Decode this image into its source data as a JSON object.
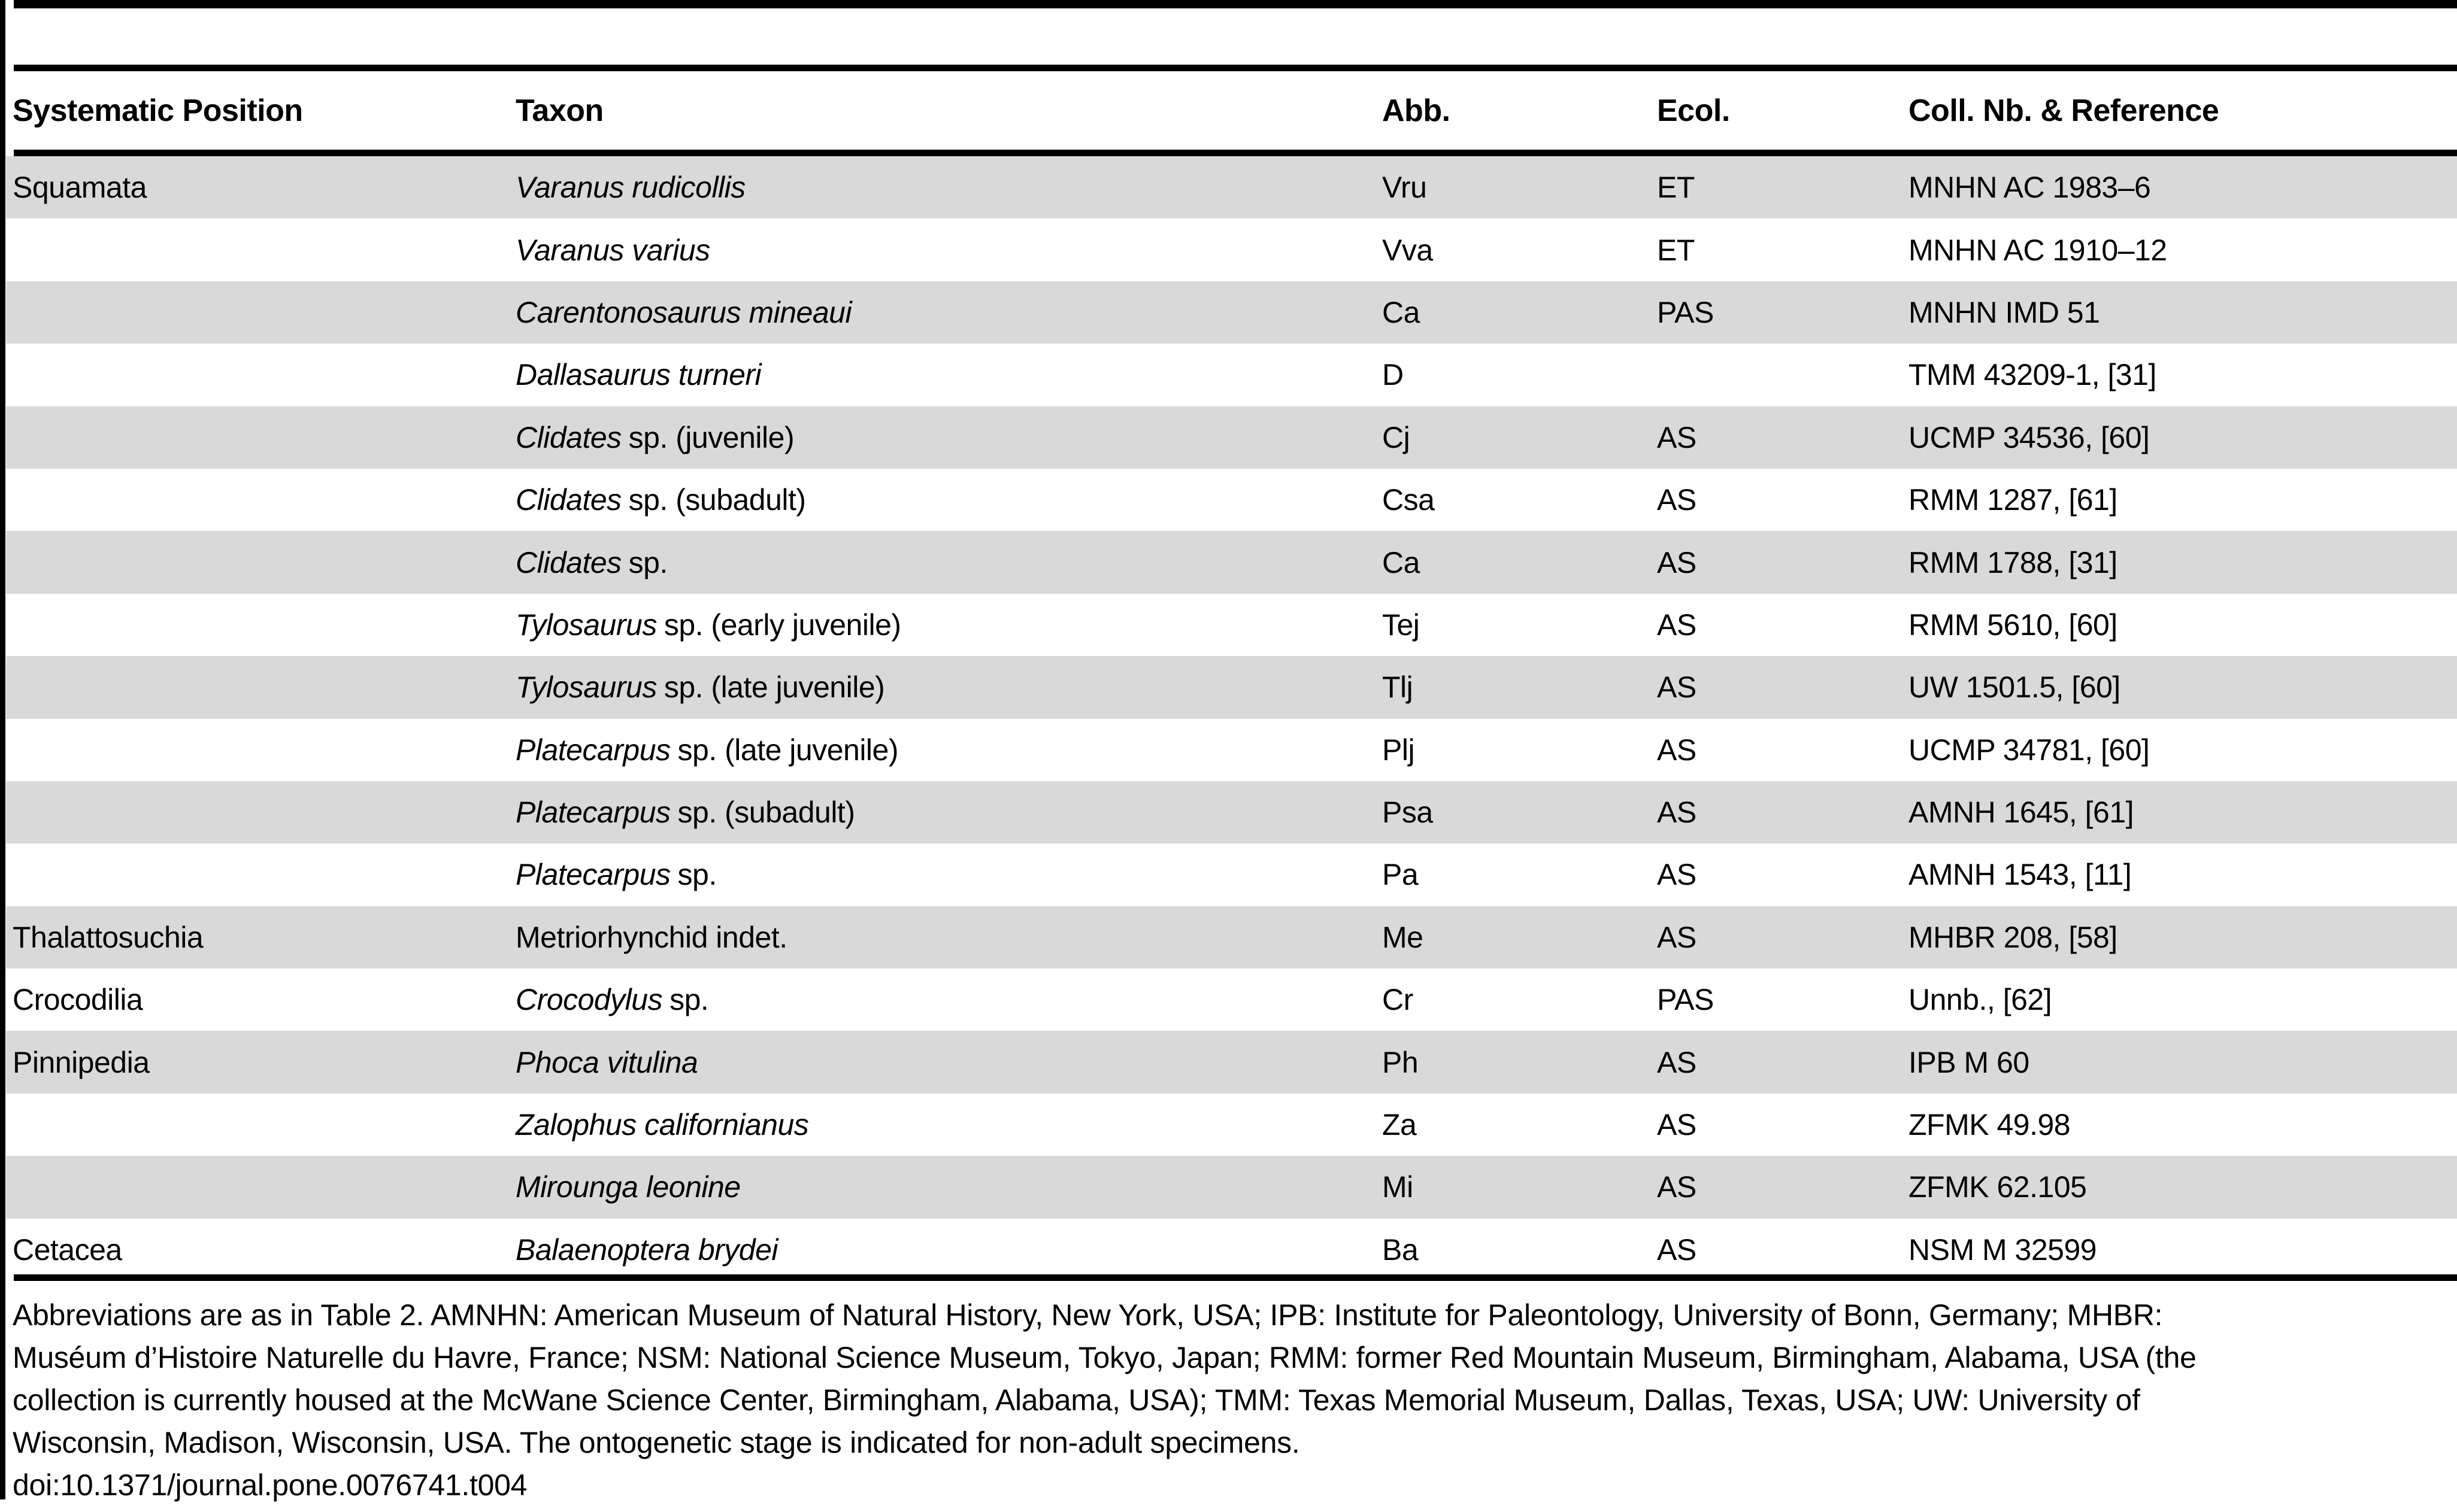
{
  "table": {
    "headers": {
      "position": "Systematic Position",
      "taxon": "Taxon",
      "abb": "Abb.",
      "ecol": "Ecol.",
      "ref": "Coll. Nb. & Reference"
    },
    "rows": [
      {
        "position": "Squamata",
        "taxon_italic": "Varanus rudicollis",
        "taxon_roman": "",
        "abb": "Vru",
        "ecol": "ET",
        "ref": "MNHN AC 1983–6"
      },
      {
        "position": "",
        "taxon_italic": "Varanus varius",
        "taxon_roman": "",
        "abb": "Vva",
        "ecol": "ET",
        "ref": "MNHN AC 1910–12"
      },
      {
        "position": "",
        "taxon_italic": "Carentonosaurus mineaui",
        "taxon_roman": "",
        "abb": "Ca",
        "ecol": "PAS",
        "ref": "MNHN IMD 51"
      },
      {
        "position": "",
        "taxon_italic": "Dallasaurus turneri",
        "taxon_roman": "",
        "abb": "D",
        "ecol": "",
        "ref": "TMM 43209-1, [31]"
      },
      {
        "position": "",
        "taxon_italic": "Clidates",
        "taxon_roman": "sp. (juvenile)",
        "abb": "Cj",
        "ecol": "AS",
        "ref": "UCMP 34536, [60]"
      },
      {
        "position": "",
        "taxon_italic": "Clidates",
        "taxon_roman": "sp. (subadult)",
        "abb": "Csa",
        "ecol": "AS",
        "ref": "RMM 1287, [61]"
      },
      {
        "position": "",
        "taxon_italic": "Clidates",
        "taxon_roman": "sp.",
        "abb": "Ca",
        "ecol": "AS",
        "ref": "RMM 1788, [31]"
      },
      {
        "position": "",
        "taxon_italic": "Tylosaurus",
        "taxon_roman": "sp. (early juvenile)",
        "abb": "Tej",
        "ecol": "AS",
        "ref": "RMM 5610, [60]"
      },
      {
        "position": "",
        "taxon_italic": "Tylosaurus",
        "taxon_roman": "sp. (late juvenile)",
        "abb": "Tlj",
        "ecol": "AS",
        "ref": "UW 1501.5, [60]"
      },
      {
        "position": "",
        "taxon_italic": "Platecarpus",
        "taxon_roman": "sp. (late juvenile)",
        "abb": "Plj",
        "ecol": "AS",
        "ref": "UCMP 34781, [60]"
      },
      {
        "position": "",
        "taxon_italic": "Platecarpus",
        "taxon_roman": "sp. (subadult)",
        "abb": "Psa",
        "ecol": "AS",
        "ref": "AMNH 1645, [61]"
      },
      {
        "position": "",
        "taxon_italic": "Platecarpus",
        "taxon_roman": "sp.",
        "abb": "Pa",
        "ecol": "AS",
        "ref": "AMNH 1543, [11]"
      },
      {
        "position": "Thalattosuchia",
        "taxon_italic": "",
        "taxon_roman": "Metriorhynchid indet.",
        "abb": "Me",
        "ecol": "AS",
        "ref": "MHBR 208, [58]"
      },
      {
        "position": "Crocodilia",
        "taxon_italic": "Crocodylus",
        "taxon_roman": "sp.",
        "abb": "Cr",
        "ecol": "PAS",
        "ref": "Unnb., [62]"
      },
      {
        "position": "Pinnipedia",
        "taxon_italic": "Phoca vitulina",
        "taxon_roman": "",
        "abb": "Ph",
        "ecol": "AS",
        "ref": "IPB M 60"
      },
      {
        "position": "",
        "taxon_italic": "Zalophus californianus",
        "taxon_roman": "",
        "abb": "Za",
        "ecol": "AS",
        "ref": "ZFMK 49.98"
      },
      {
        "position": "",
        "taxon_italic": "Mirounga leonine",
        "taxon_roman": "",
        "abb": "Mi",
        "ecol": "AS",
        "ref": "ZFMK 62.105"
      },
      {
        "position": "Cetacea",
        "taxon_italic": "Balaenoptera brydei",
        "taxon_roman": "",
        "abb": "Ba",
        "ecol": "AS",
        "ref": "NSM M 32599"
      }
    ]
  },
  "footer": {
    "lines": [
      "Abbreviations are as in Table 2. AMNHN: American Museum of Natural History, New York, USA; IPB: Institute for Paleontology, University of Bonn, Germany; MHBR:",
      "Muséum d’Histoire Naturelle du Havre, France; NSM: National Science Museum, Tokyo, Japan; RMM: former Red Mountain Museum, Birmingham, Alabama, USA (the",
      "collection is currently housed at the McWane Science Center, Birmingham, Alabama, USA); TMM: Texas Memorial Museum, Dallas, Texas, USA; UW: University of",
      "Wisconsin, Madison, Wisconsin, USA. The ontogenetic stage is indicated for non-adult specimens."
    ],
    "doi": "doi:10.1371/journal.pone.0076741.t004"
  },
  "colors": {
    "row_shade": "#d9d9d9",
    "rule": "#000000"
  }
}
